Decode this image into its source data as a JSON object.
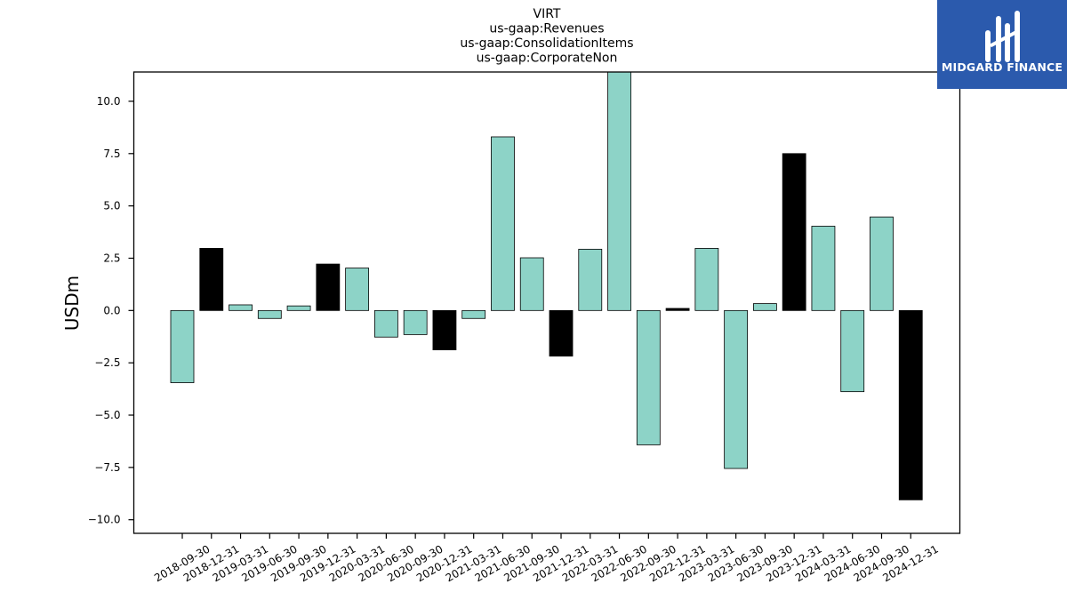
{
  "chart_data": {
    "type": "bar",
    "title_lines": [
      "VIRT",
      "us-gaap:Revenues",
      "us-gaap:ConsolidationItems",
      "us-gaap:CorporateNon"
    ],
    "xlabel": "",
    "ylabel": "USDm",
    "ylim": [
      -10.65,
      11.4
    ],
    "yticks": [
      -10.0,
      -7.5,
      -5.0,
      -2.5,
      0.0,
      2.5,
      5.0,
      7.5,
      10.0
    ],
    "ytick_labels": [
      "−10.0",
      "−7.5",
      "−5.0",
      "−2.5",
      "0.0",
      "2.5",
      "5.0",
      "7.5",
      "10.0"
    ],
    "grid": false,
    "categories": [
      "2018-09-30",
      "2018-12-31",
      "2019-03-31",
      "2019-06-30",
      "2019-09-30",
      "2019-12-31",
      "2020-03-31",
      "2020-06-30",
      "2020-09-30",
      "2020-12-31",
      "2021-03-31",
      "2021-06-30",
      "2021-09-30",
      "2021-12-31",
      "2022-03-31",
      "2022-06-30",
      "2022-09-30",
      "2022-12-31",
      "2023-03-31",
      "2023-06-30",
      "2023-09-30",
      "2023-12-31",
      "2024-03-31",
      "2024-06-30",
      "2024-09-30",
      "2024-12-31"
    ],
    "values": [
      -3.45,
      2.97,
      0.27,
      -0.38,
      0.22,
      2.22,
      2.03,
      -1.27,
      -1.15,
      -1.88,
      -0.38,
      8.3,
      2.52,
      -2.18,
      2.93,
      11.4,
      -6.42,
      0.1,
      2.97,
      -7.55,
      0.33,
      7.5,
      4.03,
      -3.88,
      4.47,
      -9.05
    ],
    "bar_colors": [
      "#8dd3c7",
      "#000000",
      "#8dd3c7",
      "#8dd3c7",
      "#8dd3c7",
      "#000000",
      "#8dd3c7",
      "#8dd3c7",
      "#8dd3c7",
      "#000000",
      "#8dd3c7",
      "#8dd3c7",
      "#8dd3c7",
      "#000000",
      "#8dd3c7",
      "#8dd3c7",
      "#8dd3c7",
      "#000000",
      "#8dd3c7",
      "#8dd3c7",
      "#8dd3c7",
      "#000000",
      "#8dd3c7",
      "#8dd3c7",
      "#8dd3c7",
      "#000000"
    ]
  },
  "logo": {
    "text": "MIDGARD FINANCE",
    "bg_color": "#2b5aad",
    "fg_color": "#ffffff"
  }
}
